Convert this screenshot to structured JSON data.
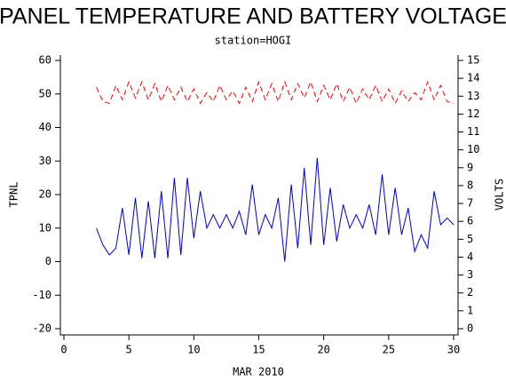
{
  "chart_data": {
    "type": "line",
    "title": "PANEL TEMPERATURE AND BATTERY VOLTAGE",
    "subtitle": "station=HOGI",
    "x_label": "MAR 2010",
    "y_label": "TPNL",
    "y2_label": "VOLTS",
    "x": [
      2.5,
      3,
      3.5,
      4,
      4.5,
      5,
      5.5,
      6,
      6.5,
      7,
      7.5,
      8,
      8.5,
      9,
      9.5,
      10,
      10.5,
      11,
      11.5,
      12,
      12.5,
      13,
      13.5,
      14,
      14.5,
      15,
      15.5,
      16,
      16.5,
      17,
      17.5,
      18,
      18.5,
      19,
      19.5,
      20,
      20.5,
      21,
      21.5,
      22,
      22.5,
      23,
      23.5,
      24,
      24.5,
      25,
      25.5,
      26,
      26.5,
      27,
      27.5,
      28,
      28.5,
      29,
      29.5,
      30
    ],
    "series": [
      {
        "name": "TPNL",
        "color": "#0000cc",
        "style": "solid",
        "values": [
          10,
          5,
          2,
          4,
          16,
          2,
          19,
          1,
          18,
          1,
          21,
          1,
          25,
          2,
          25,
          7,
          21,
          10,
          14,
          10,
          14,
          10,
          15,
          8,
          23,
          8,
          14,
          10,
          19,
          0,
          23,
          4,
          28,
          5,
          31,
          5,
          22,
          6,
          17,
          10,
          14,
          10,
          17,
          8,
          26,
          8,
          22,
          8,
          16,
          3,
          8,
          4,
          21,
          11,
          13,
          11
        ]
      },
      {
        "name": "VOLTS",
        "color": "#ff0000",
        "style": "dashed",
        "axis": "y2",
        "values": [
          13.5,
          12.7,
          12.6,
          13.6,
          12.8,
          13.8,
          12.9,
          13.8,
          12.8,
          13.7,
          12.7,
          13.6,
          12.8,
          13.5,
          12.7,
          13.4,
          12.6,
          13.2,
          12.7,
          13.6,
          12.8,
          13.3,
          12.6,
          13.5,
          12.7,
          13.8,
          12.8,
          13.7,
          12.7,
          13.8,
          12.8,
          13.7,
          12.9,
          13.8,
          12.7,
          13.6,
          12.8,
          13.7,
          12.7,
          13.5,
          12.6,
          13.4,
          12.8,
          13.6,
          12.7,
          13.4,
          12.6,
          13.3,
          12.7,
          13.2,
          12.8,
          13.8,
          12.8,
          13.6,
          12.7,
          12.6
        ]
      }
    ],
    "xlim": [
      0,
      30
    ],
    "xticks": [
      0,
      5,
      10,
      15,
      20,
      25,
      30
    ],
    "ylim": [
      -20,
      60
    ],
    "yticks": [
      -20,
      -10,
      0,
      10,
      20,
      30,
      40,
      50,
      60
    ],
    "y2lim": [
      0,
      15
    ],
    "y2ticks": [
      0,
      1,
      2,
      3,
      4,
      5,
      6,
      7,
      8,
      9,
      10,
      11,
      12,
      13,
      14,
      15
    ]
  }
}
